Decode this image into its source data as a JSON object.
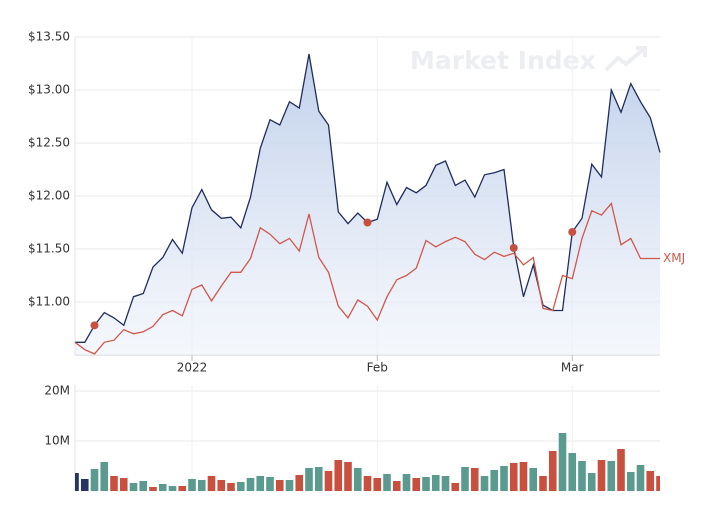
{
  "chart_data": [
    {
      "type": "line",
      "watermark": "Market Index",
      "categories": [
        null,
        null,
        null,
        null,
        null,
        null,
        null,
        null,
        null,
        null,
        null,
        null,
        "2022",
        null,
        null,
        null,
        null,
        null,
        null,
        null,
        null,
        null,
        null,
        null,
        null,
        null,
        null,
        null,
        null,
        null,
        null,
        "Feb",
        null,
        null,
        null,
        null,
        null,
        null,
        null,
        null,
        null,
        null,
        null,
        null,
        null,
        null,
        null,
        null,
        null,
        null,
        null,
        "Mar",
        null,
        null,
        null,
        null,
        null,
        null,
        null,
        null,
        null
      ],
      "series": [
        {
          "color": "#1f2d5c",
          "area": true,
          "values": [
            10.62,
            10.62,
            10.78,
            10.9,
            10.85,
            10.78,
            11.05,
            11.08,
            11.33,
            11.42,
            11.59,
            11.46,
            11.89,
            12.06,
            11.87,
            11.79,
            11.8,
            11.7,
            11.99,
            12.45,
            12.72,
            12.67,
            12.89,
            12.83,
            13.34,
            12.8,
            12.67,
            11.85,
            11.74,
            11.84,
            11.75,
            11.78,
            12.13,
            11.92,
            12.08,
            12.03,
            12.1,
            12.29,
            12.33,
            12.1,
            12.15,
            11.99,
            12.2,
            12.22,
            12.25,
            11.51,
            11.05,
            11.35,
            10.97,
            10.92,
            10.92,
            11.66,
            11.79,
            12.3,
            12.18,
            13.0,
            12.79,
            13.06,
            12.89,
            12.74,
            12.41
          ]
        },
        {
          "name": "XMJ",
          "color": "#d0574a",
          "values": [
            10.62,
            10.55,
            10.51,
            10.62,
            10.64,
            10.74,
            10.7,
            10.72,
            10.77,
            10.88,
            10.92,
            10.87,
            11.12,
            11.16,
            11.01,
            11.15,
            11.28,
            11.28,
            11.41,
            11.7,
            11.64,
            11.55,
            11.6,
            11.48,
            11.83,
            11.42,
            11.28,
            10.96,
            10.85,
            11.02,
            10.96,
            10.83,
            11.05,
            11.21,
            11.25,
            11.32,
            11.58,
            11.52,
            11.57,
            11.61,
            11.57,
            11.45,
            11.4,
            11.47,
            11.43,
            11.46,
            11.35,
            11.42,
            10.94,
            10.92,
            11.25,
            11.22,
            11.6,
            11.86,
            11.82,
            11.93,
            11.54,
            11.6,
            11.41,
            11.41,
            11.41
          ]
        }
      ],
      "markers": {
        "color": "#c9503f",
        "values": [
          null,
          null,
          10.78,
          null,
          null,
          null,
          null,
          null,
          null,
          null,
          null,
          null,
          null,
          null,
          null,
          null,
          null,
          null,
          null,
          null,
          null,
          null,
          null,
          null,
          null,
          null,
          null,
          null,
          null,
          null,
          11.75,
          null,
          null,
          null,
          null,
          null,
          null,
          null,
          null,
          null,
          null,
          null,
          null,
          null,
          null,
          11.51,
          null,
          null,
          null,
          null,
          null,
          11.66,
          null,
          null,
          null,
          null,
          null,
          null,
          null,
          null,
          null
        ]
      },
      "ylim": [
        10.5,
        13.5
      ],
      "yticks": [
        {
          "value": 11,
          "label": "$11.00"
        },
        {
          "value": 11.5,
          "label": "$11.50"
        },
        {
          "value": 12,
          "label": "$12.00"
        },
        {
          "value": 12.5,
          "label": "$12.50"
        },
        {
          "value": 13,
          "label": "$13.00"
        },
        {
          "value": 13.5,
          "label": "$13.50"
        }
      ],
      "grid": true
    },
    {
      "type": "bar",
      "values": [
        3.6,
        2.4,
        4.4,
        5.8,
        3.0,
        2.6,
        1.6,
        2.0,
        0.8,
        1.4,
        1.0,
        1.0,
        2.4,
        2.2,
        3.0,
        2.2,
        1.6,
        1.8,
        2.6,
        3.0,
        2.8,
        2.2,
        2.2,
        3.2,
        4.6,
        4.8,
        4.0,
        6.2,
        5.8,
        4.6,
        3.0,
        2.6,
        3.4,
        2.0,
        3.4,
        2.6,
        2.8,
        3.2,
        3.0,
        1.6,
        4.8,
        4.6,
        3.0,
        4.2,
        5.0,
        5.6,
        5.8,
        4.6,
        3.0,
        8.0,
        11.6,
        7.6,
        6.0,
        3.6,
        6.2,
        6.0,
        8.4,
        3.8,
        5.2,
        4.0,
        3.0
      ],
      "colors": [
        "#243463",
        "#243463",
        "#5b9a8f",
        "#5b9a8f",
        "#c9503f",
        "#c9503f",
        "#5b9a8f",
        "#5b9a8f",
        "#c9503f",
        "#5b9a8f",
        "#5b9a8f",
        "#c9503f",
        "#5b9a8f",
        "#5b9a8f",
        "#c9503f",
        "#c9503f",
        "#c9503f",
        "#5b9a8f",
        "#5b9a8f",
        "#5b9a8f",
        "#5b9a8f",
        "#c9503f",
        "#5b9a8f",
        "#c9503f",
        "#5b9a8f",
        "#5b9a8f",
        "#c9503f",
        "#c9503f",
        "#c9503f",
        "#5b9a8f",
        "#c9503f",
        "#c9503f",
        "#5b9a8f",
        "#c9503f",
        "#5b9a8f",
        "#c9503f",
        "#5b9a8f",
        "#5b9a8f",
        "#5b9a8f",
        "#c9503f",
        "#5b9a8f",
        "#c9503f",
        "#5b9a8f",
        "#5b9a8f",
        "#5b9a8f",
        "#c9503f",
        "#c9503f",
        "#5b9a8f",
        "#c9503f",
        "#c9503f",
        "#5b9a8f",
        "#5b9a8f",
        "#5b9a8f",
        "#5b9a8f",
        "#c9503f",
        "#5b9a8f",
        "#c9503f",
        "#5b9a8f",
        "#5b9a8f",
        "#c9503f",
        "#c9503f"
      ],
      "ylim": [
        0,
        20
      ],
      "yticks": [
        {
          "value": 10,
          "label": "10M"
        },
        {
          "value": 20,
          "label": "20M"
        }
      ],
      "grid": true
    }
  ]
}
